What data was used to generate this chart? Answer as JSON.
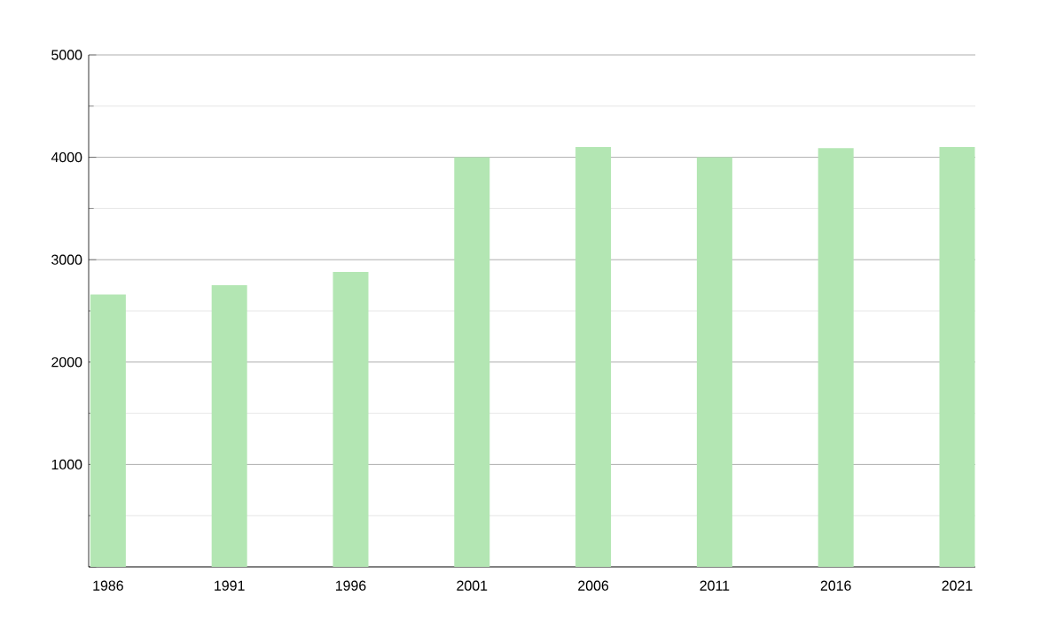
{
  "chart_data": {
    "type": "bar",
    "categories": [
      "1986",
      "1991",
      "1996",
      "2001",
      "2006",
      "2011",
      "2016",
      "2021"
    ],
    "values": [
      2660,
      2750,
      2880,
      4000,
      4100,
      4000,
      4090,
      4100
    ],
    "color": "#b3e6b3",
    "ylim": [
      0,
      5000
    ],
    "yticks": [
      {
        "value": 0,
        "label": null
      },
      1000,
      2000,
      3000,
      4000,
      5000
    ],
    "grid": "y"
  }
}
